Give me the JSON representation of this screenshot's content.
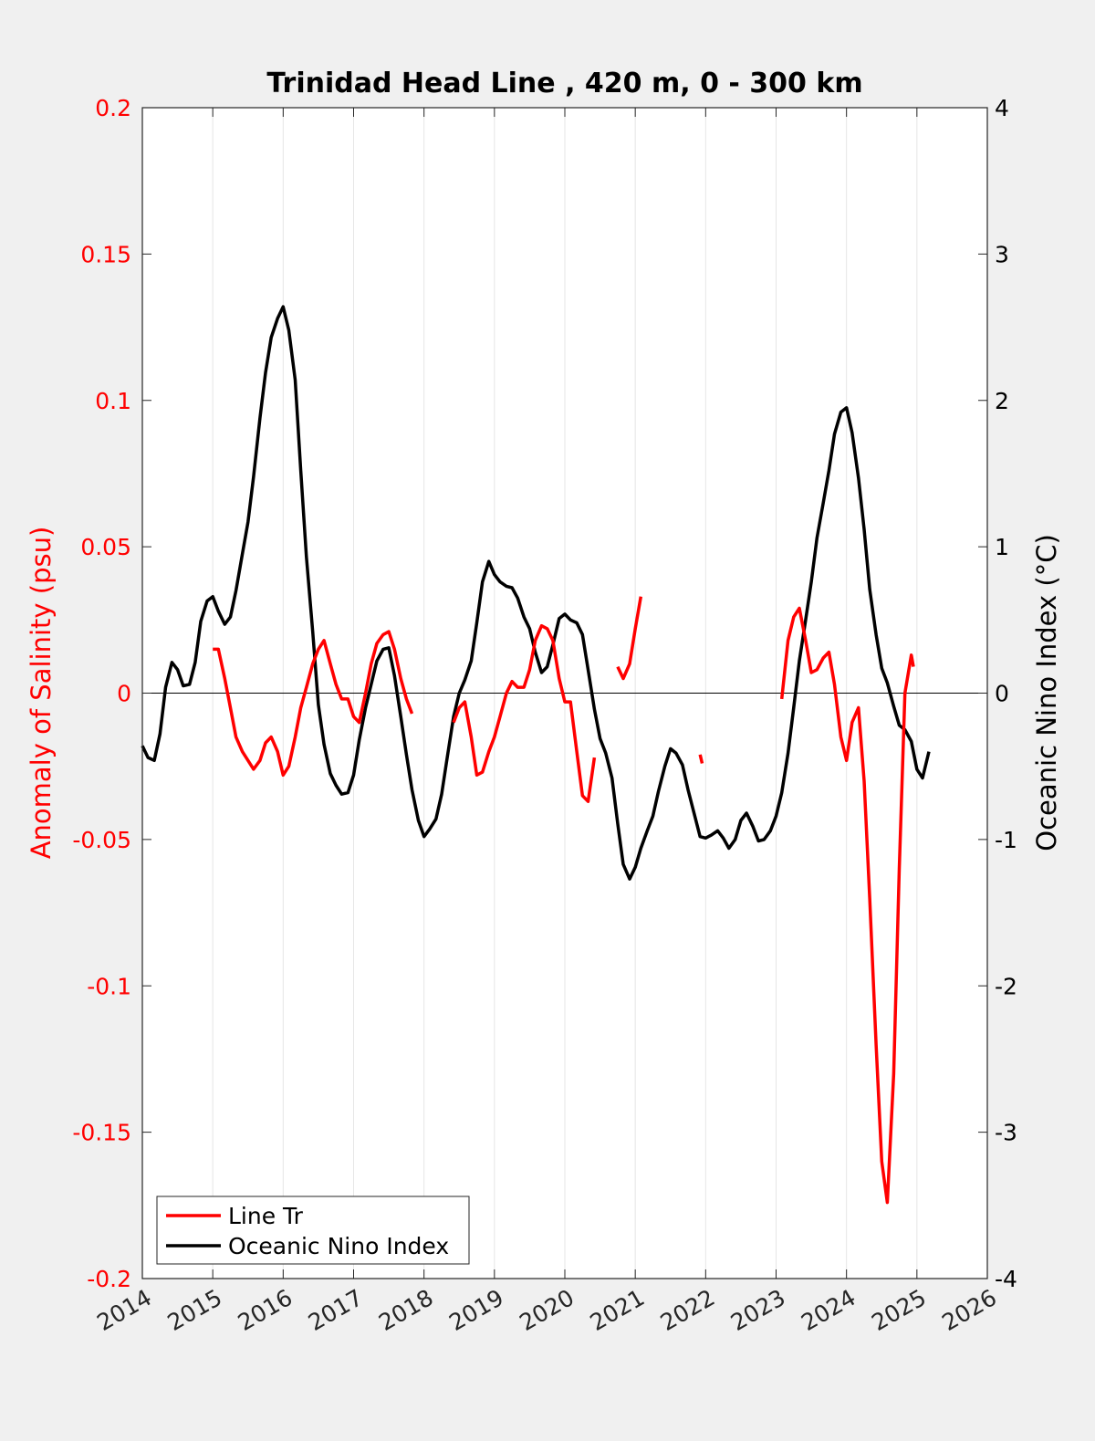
{
  "chart_data": {
    "type": "line",
    "title": "Trinidad Head Line , 420 m, 0 - 300 km",
    "xlim": [
      2014,
      2026
    ],
    "x_ticks": [
      "2014",
      "2015",
      "2016",
      "2017",
      "2018",
      "2019",
      "2020",
      "2021",
      "2022",
      "2023",
      "2024",
      "2025",
      "2026"
    ],
    "left_axis": {
      "label": "Anomaly of Salinity (psu)",
      "ylim": [
        -0.2,
        0.2
      ],
      "ticks": [
        "-0.2",
        "-0.15",
        "-0.1",
        "-0.05",
        "0",
        "0.05",
        "0.1",
        "0.15",
        "0.2"
      ],
      "color": "#ff0000"
    },
    "right_axis": {
      "label": "Oceanic Nino Index (°C)",
      "ylim": [
        -4,
        4
      ],
      "ticks": [
        "-4",
        "-3",
        "-2",
        "-1",
        "0",
        "1",
        "2",
        "3",
        "4"
      ],
      "color": "#000000"
    },
    "grid": "vertical",
    "legend_position": "bottom-left",
    "legend": [
      "Line Tr",
      "Oceanic Nino Index"
    ],
    "series": [
      {
        "name": "Line Tr",
        "axis": "left",
        "color": "#ff0000",
        "segments": [
          [
            [
              2015.0,
              0.015
            ],
            [
              2015.08,
              0.015
            ],
            [
              2015.17,
              0.005
            ],
            [
              2015.25,
              -0.005
            ],
            [
              2015.33,
              -0.015
            ],
            [
              2015.42,
              -0.02
            ],
            [
              2015.5,
              -0.023
            ],
            [
              2015.58,
              -0.026
            ],
            [
              2015.67,
              -0.023
            ],
            [
              2015.75,
              -0.017
            ],
            [
              2015.83,
              -0.015
            ],
            [
              2015.92,
              -0.02
            ],
            [
              2016.0,
              -0.028
            ],
            [
              2016.08,
              -0.025
            ],
            [
              2016.17,
              -0.015
            ],
            [
              2016.25,
              -0.005
            ],
            [
              2016.33,
              0.002
            ],
            [
              2016.42,
              0.01
            ],
            [
              2016.5,
              0.015
            ],
            [
              2016.58,
              0.018
            ],
            [
              2016.67,
              0.01
            ],
            [
              2016.75,
              0.003
            ],
            [
              2016.83,
              -0.002
            ],
            [
              2016.92,
              -0.002
            ],
            [
              2017.0,
              -0.008
            ],
            [
              2017.08,
              -0.01
            ],
            [
              2017.17,
              0.0
            ],
            [
              2017.25,
              0.01
            ],
            [
              2017.33,
              0.017
            ],
            [
              2017.42,
              0.02
            ],
            [
              2017.5,
              0.021
            ],
            [
              2017.58,
              0.015
            ],
            [
              2017.67,
              0.005
            ],
            [
              2017.75,
              -0.002
            ],
            [
              2017.83,
              -0.007
            ]
          ],
          [
            [
              2018.42,
              -0.01
            ],
            [
              2018.5,
              -0.005
            ],
            [
              2018.58,
              -0.003
            ],
            [
              2018.67,
              -0.015
            ],
            [
              2018.75,
              -0.028
            ],
            [
              2018.83,
              -0.027
            ],
            [
              2018.92,
              -0.02
            ],
            [
              2019.0,
              -0.015
            ],
            [
              2019.08,
              -0.008
            ],
            [
              2019.17,
              0.0
            ],
            [
              2019.25,
              0.004
            ],
            [
              2019.33,
              0.002
            ],
            [
              2019.42,
              0.002
            ],
            [
              2019.5,
              0.008
            ],
            [
              2019.58,
              0.018
            ],
            [
              2019.67,
              0.023
            ],
            [
              2019.75,
              0.022
            ],
            [
              2019.83,
              0.018
            ],
            [
              2019.92,
              0.005
            ],
            [
              2020.0,
              -0.003
            ],
            [
              2020.08,
              -0.003
            ],
            [
              2020.17,
              -0.02
            ],
            [
              2020.25,
              -0.035
            ],
            [
              2020.33,
              -0.037
            ],
            [
              2020.42,
              -0.022
            ]
          ],
          [
            [
              2020.75,
              0.009
            ],
            [
              2020.83,
              0.005
            ],
            [
              2020.92,
              0.01
            ],
            [
              2021.0,
              0.022
            ],
            [
              2021.08,
              0.033
            ]
          ],
          [
            [
              2021.92,
              -0.021
            ],
            [
              2021.95,
              -0.024
            ]
          ],
          [
            [
              2023.08,
              -0.002
            ],
            [
              2023.17,
              0.018
            ],
            [
              2023.25,
              0.026
            ],
            [
              2023.33,
              0.029
            ],
            [
              2023.42,
              0.018
            ],
            [
              2023.5,
              0.007
            ],
            [
              2023.58,
              0.008
            ],
            [
              2023.67,
              0.012
            ],
            [
              2023.75,
              0.014
            ],
            [
              2023.83,
              0.003
            ],
            [
              2023.92,
              -0.015
            ],
            [
              2024.0,
              -0.023
            ],
            [
              2024.08,
              -0.01
            ],
            [
              2024.17,
              -0.005
            ],
            [
              2024.25,
              -0.03
            ],
            [
              2024.33,
              -0.07
            ],
            [
              2024.42,
              -0.12
            ],
            [
              2024.5,
              -0.16
            ],
            [
              2024.58,
              -0.174
            ],
            [
              2024.67,
              -0.13
            ],
            [
              2024.75,
              -0.06
            ],
            [
              2024.83,
              0.0
            ],
            [
              2024.92,
              0.013
            ],
            [
              2024.95,
              0.009
            ]
          ]
        ]
      },
      {
        "name": "Oceanic Nino Index",
        "axis": "right",
        "color": "#000000",
        "segments": [
          [
            [
              2014.0,
              -0.36
            ],
            [
              2014.08,
              -0.44
            ],
            [
              2014.17,
              -0.46
            ],
            [
              2014.25,
              -0.28
            ],
            [
              2014.33,
              0.04
            ],
            [
              2014.42,
              0.21
            ],
            [
              2014.5,
              0.16
            ],
            [
              2014.58,
              0.05
            ],
            [
              2014.67,
              0.06
            ],
            [
              2014.75,
              0.21
            ],
            [
              2014.83,
              0.49
            ],
            [
              2014.92,
              0.63
            ],
            [
              2015.0,
              0.66
            ],
            [
              2015.08,
              0.56
            ],
            [
              2015.17,
              0.47
            ],
            [
              2015.25,
              0.52
            ],
            [
              2015.33,
              0.7
            ],
            [
              2015.42,
              0.95
            ],
            [
              2015.5,
              1.17
            ],
            [
              2015.58,
              1.48
            ],
            [
              2015.67,
              1.88
            ],
            [
              2015.75,
              2.19
            ],
            [
              2015.83,
              2.43
            ],
            [
              2015.92,
              2.56
            ],
            [
              2016.0,
              2.64
            ],
            [
              2016.08,
              2.48
            ],
            [
              2016.17,
              2.14
            ],
            [
              2016.25,
              1.52
            ],
            [
              2016.33,
              0.93
            ],
            [
              2016.42,
              0.42
            ],
            [
              2016.5,
              -0.08
            ],
            [
              2016.58,
              -0.35
            ],
            [
              2016.67,
              -0.55
            ],
            [
              2016.75,
              -0.63
            ],
            [
              2016.83,
              -0.69
            ],
            [
              2016.92,
              -0.68
            ],
            [
              2017.0,
              -0.56
            ],
            [
              2017.08,
              -0.32
            ],
            [
              2017.17,
              -0.1
            ],
            [
              2017.25,
              0.06
            ],
            [
              2017.33,
              0.22
            ],
            [
              2017.42,
              0.3
            ],
            [
              2017.5,
              0.31
            ],
            [
              2017.58,
              0.12
            ],
            [
              2017.67,
              -0.16
            ],
            [
              2017.75,
              -0.42
            ],
            [
              2017.83,
              -0.66
            ],
            [
              2017.92,
              -0.87
            ],
            [
              2018.0,
              -0.98
            ],
            [
              2018.08,
              -0.93
            ],
            [
              2018.17,
              -0.86
            ],
            [
              2018.25,
              -0.69
            ],
            [
              2018.33,
              -0.44
            ],
            [
              2018.42,
              -0.16
            ],
            [
              2018.5,
              0.0
            ],
            [
              2018.58,
              0.09
            ],
            [
              2018.67,
              0.22
            ],
            [
              2018.75,
              0.48
            ],
            [
              2018.83,
              0.76
            ],
            [
              2018.92,
              0.9
            ],
            [
              2019.0,
              0.81
            ],
            [
              2019.08,
              0.76
            ],
            [
              2019.17,
              0.73
            ],
            [
              2019.25,
              0.72
            ],
            [
              2019.33,
              0.65
            ],
            [
              2019.42,
              0.52
            ],
            [
              2019.5,
              0.44
            ],
            [
              2019.58,
              0.28
            ],
            [
              2019.67,
              0.14
            ],
            [
              2019.75,
              0.18
            ],
            [
              2019.83,
              0.33
            ],
            [
              2019.92,
              0.51
            ],
            [
              2020.0,
              0.54
            ],
            [
              2020.08,
              0.5
            ],
            [
              2020.17,
              0.48
            ],
            [
              2020.25,
              0.4
            ],
            [
              2020.33,
              0.16
            ],
            [
              2020.42,
              -0.11
            ],
            [
              2020.5,
              -0.31
            ],
            [
              2020.58,
              -0.41
            ],
            [
              2020.67,
              -0.58
            ],
            [
              2020.75,
              -0.89
            ],
            [
              2020.83,
              -1.17
            ],
            [
              2020.92,
              -1.27
            ],
            [
              2021.0,
              -1.19
            ],
            [
              2021.08,
              -1.06
            ],
            [
              2021.17,
              -0.94
            ],
            [
              2021.25,
              -0.84
            ],
            [
              2021.33,
              -0.67
            ],
            [
              2021.42,
              -0.5
            ],
            [
              2021.5,
              -0.38
            ],
            [
              2021.58,
              -0.41
            ],
            [
              2021.67,
              -0.49
            ],
            [
              2021.75,
              -0.66
            ],
            [
              2021.83,
              -0.81
            ],
            [
              2021.92,
              -0.98
            ],
            [
              2022.0,
              -0.99
            ],
            [
              2022.08,
              -0.97
            ],
            [
              2022.17,
              -0.94
            ],
            [
              2022.25,
              -0.99
            ],
            [
              2022.33,
              -1.06
            ],
            [
              2022.42,
              -1.0
            ],
            [
              2022.5,
              -0.87
            ],
            [
              2022.58,
              -0.82
            ],
            [
              2022.67,
              -0.91
            ],
            [
              2022.75,
              -1.01
            ],
            [
              2022.83,
              -1.0
            ],
            [
              2022.92,
              -0.94
            ],
            [
              2023.0,
              -0.84
            ],
            [
              2023.08,
              -0.68
            ],
            [
              2023.17,
              -0.41
            ],
            [
              2023.25,
              -0.1
            ],
            [
              2023.33,
              0.22
            ],
            [
              2023.42,
              0.5
            ],
            [
              2023.5,
              0.76
            ],
            [
              2023.58,
              1.06
            ],
            [
              2023.67,
              1.3
            ],
            [
              2023.75,
              1.52
            ],
            [
              2023.83,
              1.77
            ],
            [
              2023.92,
              1.92
            ],
            [
              2024.0,
              1.95
            ],
            [
              2024.08,
              1.78
            ],
            [
              2024.17,
              1.47
            ],
            [
              2024.25,
              1.12
            ],
            [
              2024.33,
              0.71
            ],
            [
              2024.42,
              0.4
            ],
            [
              2024.5,
              0.17
            ],
            [
              2024.58,
              0.07
            ],
            [
              2024.67,
              -0.09
            ],
            [
              2024.75,
              -0.22
            ],
            [
              2024.83,
              -0.25
            ],
            [
              2024.92,
              -0.33
            ],
            [
              2025.0,
              -0.52
            ],
            [
              2025.08,
              -0.58
            ],
            [
              2025.17,
              -0.4
            ]
          ]
        ]
      }
    ]
  }
}
